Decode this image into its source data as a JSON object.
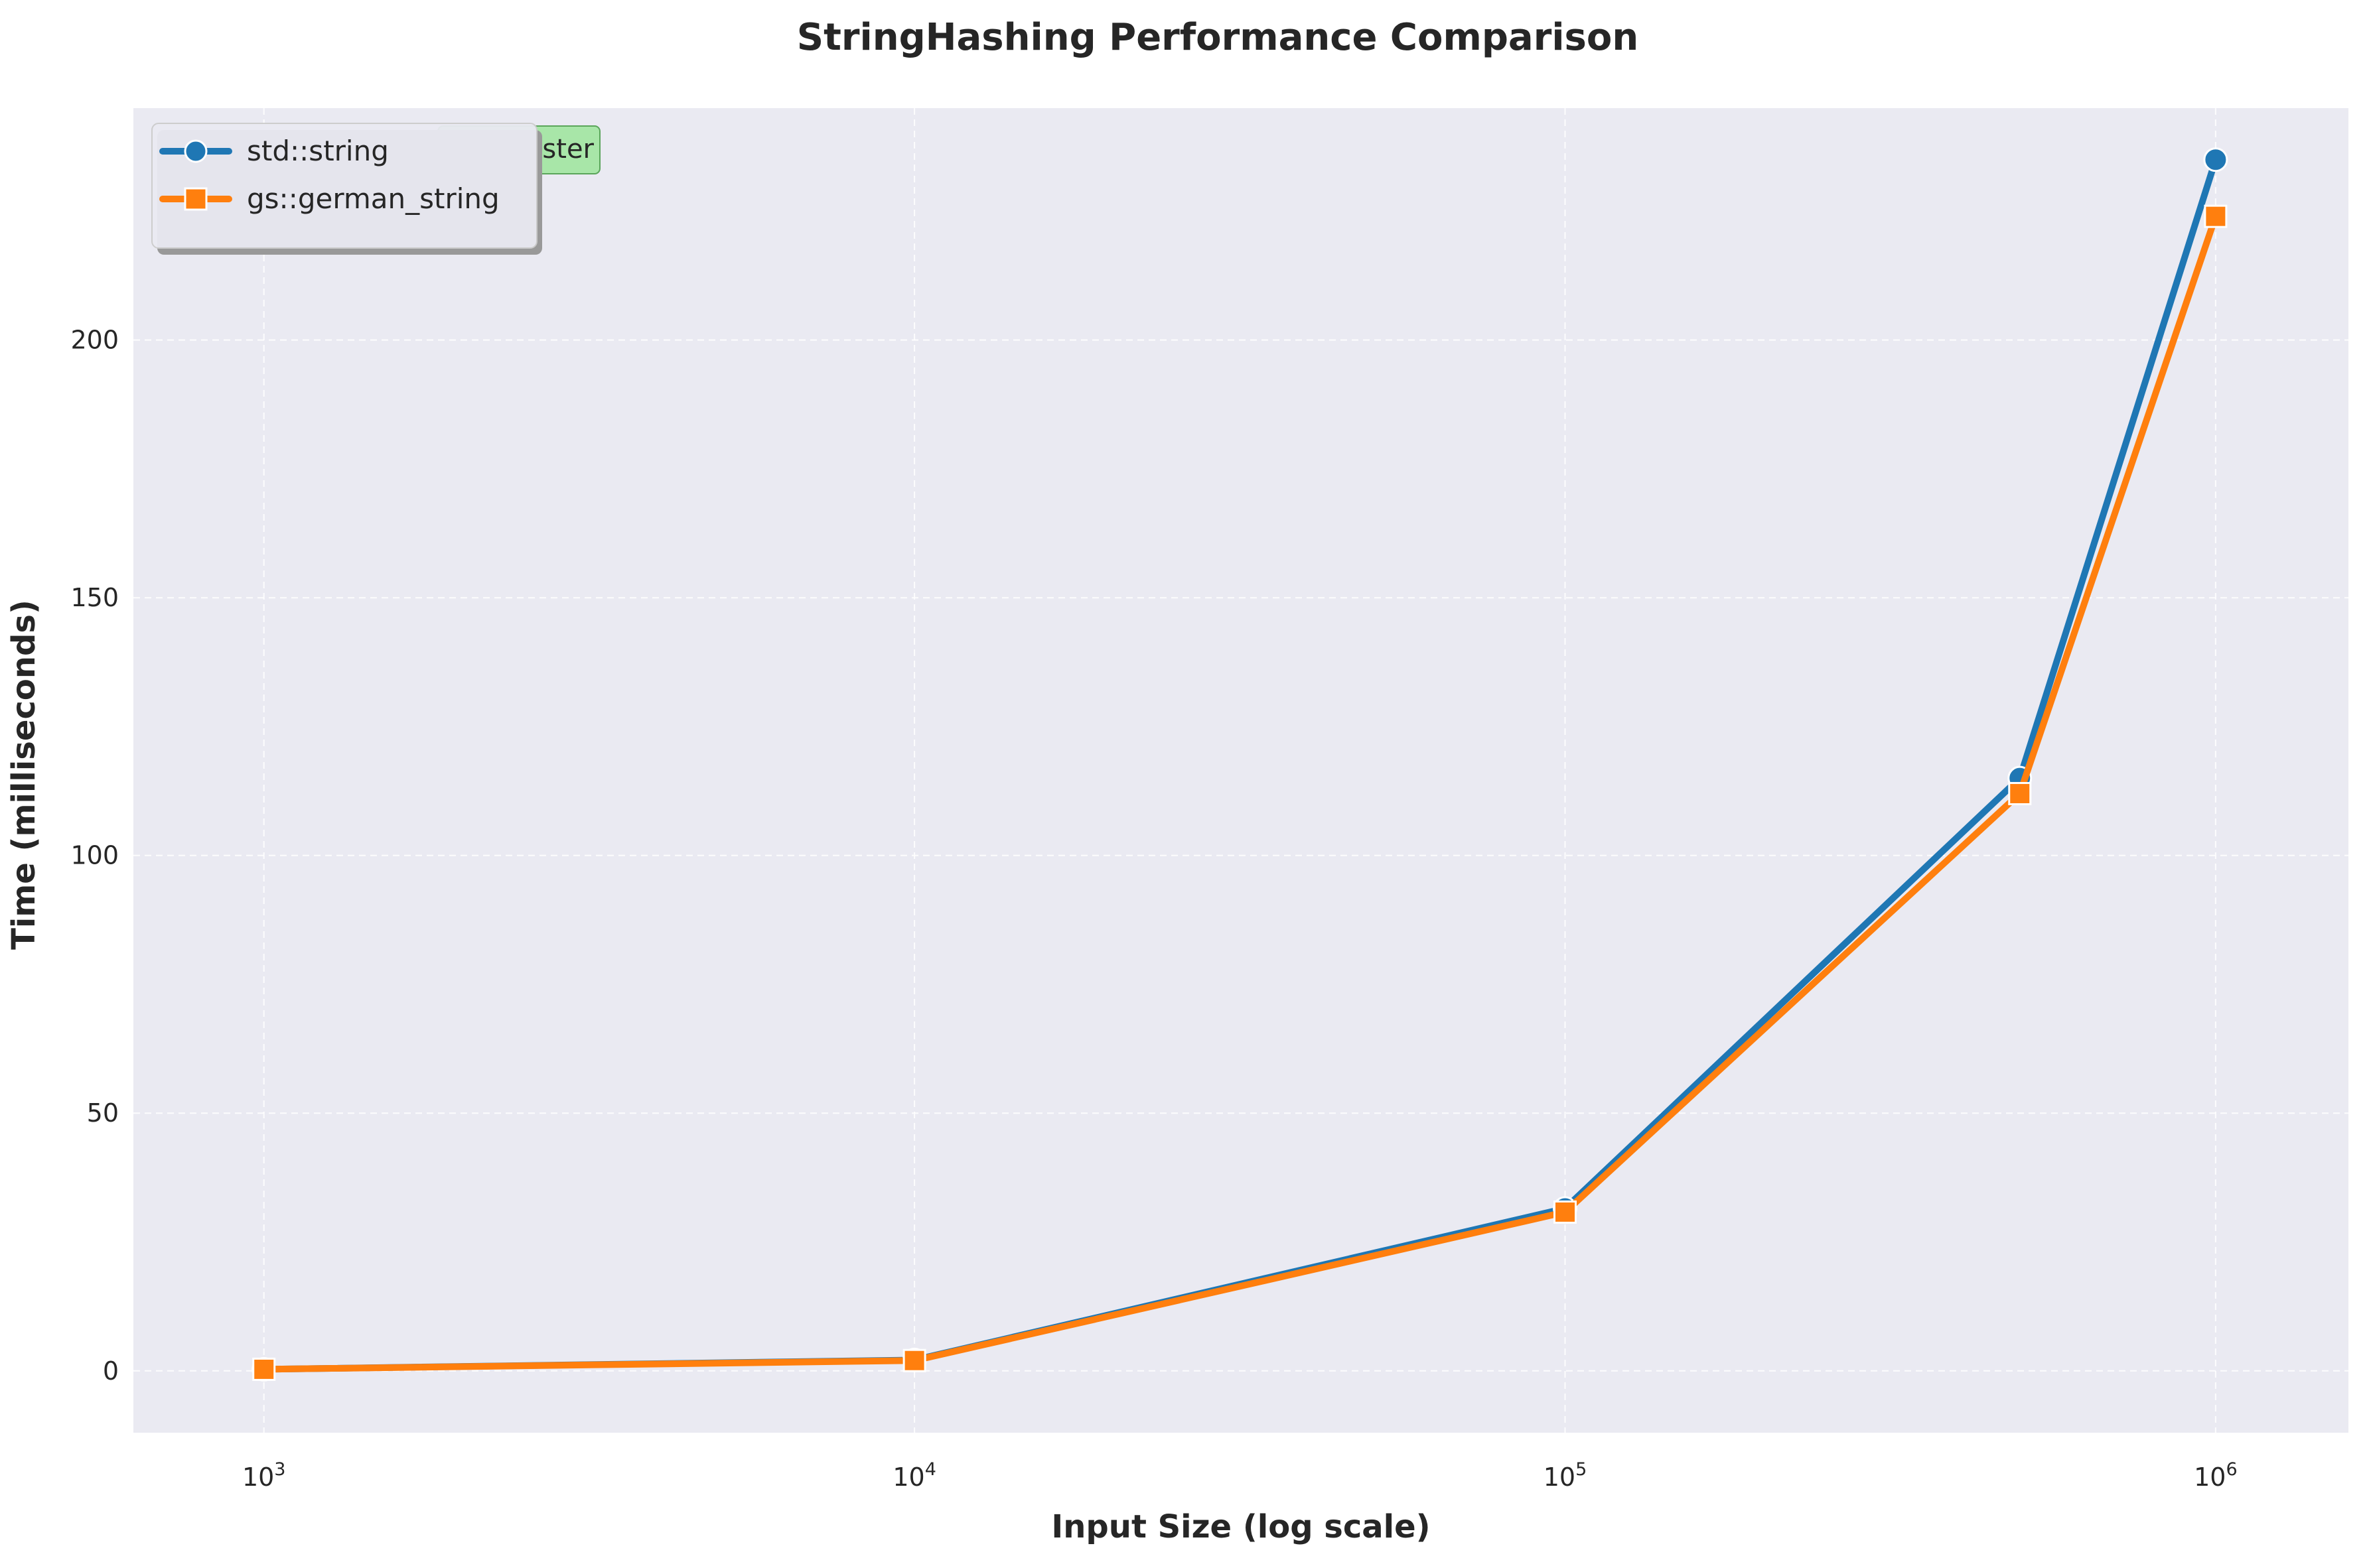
{
  "chart_data": {
    "type": "line",
    "title": "StringHashing Performance Comparison",
    "xlabel": "Input Size (log scale)",
    "ylabel": "Time (milliseconds)",
    "x_scale": "log",
    "x": [
      1000,
      10000,
      100000,
      500000,
      1000000
    ],
    "xlim": [
      630,
      1600000
    ],
    "ylim": [
      -12,
      245
    ],
    "xticks": [
      1000,
      10000,
      100000,
      1000000
    ],
    "xtick_labels": [
      {
        "base": "10",
        "exp": "3"
      },
      {
        "base": "10",
        "exp": "4"
      },
      {
        "base": "10",
        "exp": "5"
      },
      {
        "base": "10",
        "exp": "6"
      }
    ],
    "yticks": [
      0,
      50,
      100,
      150,
      200
    ],
    "ytick_labels": [
      "0",
      "50",
      "100",
      "150",
      "200"
    ],
    "grid": true,
    "legend_position": "top-left",
    "series": [
      {
        "name": "std::string",
        "marker": "circle",
        "color": "#1f77b4",
        "values": [
          0.3,
          2.1,
          31.5,
          115,
          235
        ]
      },
      {
        "name": "gs::german_string",
        "marker": "square",
        "color": "#ff7f0e",
        "values": [
          0.3,
          2.0,
          30.8,
          112,
          224
        ]
      }
    ],
    "annotation": {
      "text": "ster",
      "background": "#a8e6a8"
    }
  },
  "colors": {
    "plot_background": "#eaeaf2",
    "text": "#262626"
  }
}
